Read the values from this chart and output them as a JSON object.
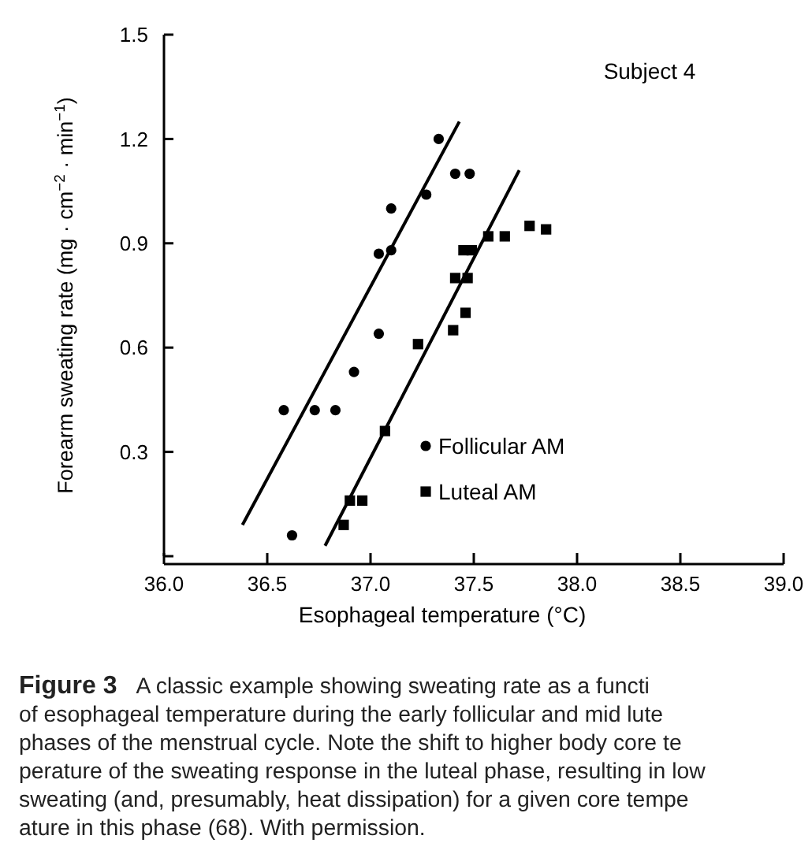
{
  "chart_data": {
    "type": "scatter",
    "title": "Subject 4",
    "xlabel": "Esophageal temperature (°C)",
    "ylabel": "Forearm sweating rate (mg · cm$^{−2}$ · min$^{−1}$)",
    "xlim": [
      36,
      39
    ],
    "xticks": [
      {
        "value": 36,
        "label": "36.0"
      },
      36.5,
      {
        "value": 37,
        "label": "37.0"
      },
      37.5,
      {
        "value": 38,
        "label": "38.0"
      },
      38.5,
      {
        "value": 39,
        "label": "39.0"
      }
    ],
    "ylim": [
      0,
      1.5
    ],
    "yticks": [
      {
        "value": 0,
        "label": null
      },
      0.3,
      0.6,
      0.9,
      1.2,
      1.5
    ],
    "legend": "bottom right",
    "grid": false,
    "series": [
      {
        "name": "Follicular AM",
        "color": "#000000",
        "marker": "circle",
        "x": [
          36.58,
          36.62,
          36.73,
          36.83,
          36.92,
          37.04,
          37.04,
          37.1,
          37.1,
          37.27,
          37.33,
          37.41,
          37.48
        ],
        "values": [
          0.42,
          0.06,
          0.42,
          0.42,
          0.53,
          0.64,
          0.87,
          0.88,
          1.0,
          1.04,
          1.2,
          1.1,
          1.1
        ]
      },
      {
        "name": "Luteal AM",
        "color": "#000000",
        "marker": "square",
        "x": [
          36.87,
          36.9,
          36.96,
          37.07,
          37.23,
          37.4,
          37.46,
          37.41,
          37.47,
          37.45,
          37.49,
          37.57,
          37.65,
          37.77,
          37.85
        ],
        "values": [
          0.09,
          0.16,
          0.16,
          0.36,
          0.61,
          0.65,
          0.7,
          0.8,
          0.8,
          0.88,
          0.88,
          0.92,
          0.92,
          0.95,
          0.94
        ]
      },
      {
        "type": "line",
        "color": "#000000",
        "marker": "none",
        "x": [
          36.38,
          37.43
        ],
        "values": [
          0.09,
          1.25
        ]
      },
      {
        "type": "line",
        "color": "#000000",
        "marker": "none",
        "x": [
          36.78,
          37.72
        ],
        "values": [
          0.03,
          1.11
        ]
      }
    ],
    "annotations": [
      "Figure 3",
      "A classic example showing sweating rate as a functi",
      "of esophageal temperature during the early follicular and mid lute",
      "phases of the menstrual cycle. Note the shift to higher body core te",
      "perature of the sweating response in the luteal phase, resulting in low",
      "sweating (and, presumably, heat dissipation) for a given core tempe",
      "ature in this phase (68). With permission."
    ]
  }
}
